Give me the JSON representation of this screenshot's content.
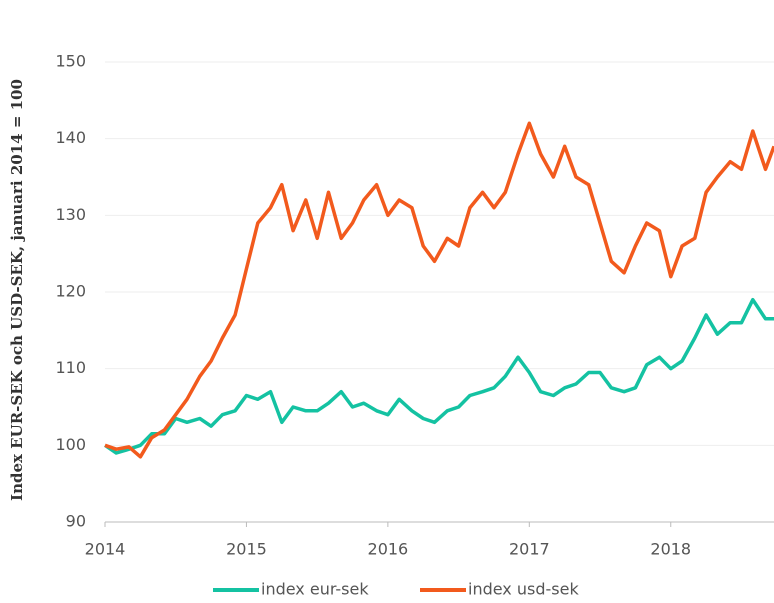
{
  "chart_data": {
    "type": "line",
    "y_label": "Index EUR-SEK och USD-SEK, januari 2014 = 100",
    "x": [
      2014,
      2014.08,
      2014.17,
      2014.25,
      2014.33,
      2014.42,
      2014.5,
      2014.58,
      2014.67,
      2014.75,
      2014.83,
      2014.92,
      2015,
      2015.08,
      2015.17,
      2015.25,
      2015.33,
      2015.42,
      2015.5,
      2015.58,
      2015.67,
      2015.75,
      2015.83,
      2015.92,
      2016,
      2016.08,
      2016.17,
      2016.25,
      2016.33,
      2016.42,
      2016.5,
      2016.58,
      2016.67,
      2016.75,
      2016.83,
      2016.92,
      2017,
      2017.08,
      2017.17,
      2017.25,
      2017.33,
      2017.42,
      2017.5,
      2017.58,
      2017.67,
      2017.75,
      2017.83,
      2017.92,
      2018,
      2018.08,
      2018.17,
      2018.25,
      2018.33,
      2018.42,
      2018.5,
      2018.58,
      2018.67,
      2018.73
    ],
    "series": [
      {
        "name": "index eur-sek",
        "color": "#14c2a2",
        "values": [
          100,
          99,
          99.5,
          100,
          101.5,
          101.5,
          103.5,
          103,
          103.5,
          102.5,
          104,
          104.5,
          106.5,
          106,
          107,
          103,
          105,
          104.5,
          104.5,
          105.5,
          107,
          105,
          105.5,
          104.5,
          104,
          106,
          104.5,
          103.5,
          103,
          104.5,
          105,
          106.5,
          107,
          107.5,
          109,
          111.5,
          109.5,
          107,
          106.5,
          107.5,
          108,
          109.5,
          109.5,
          107.5,
          107,
          107.5,
          110.5,
          111.5,
          110,
          111,
          114,
          117,
          114.5,
          116,
          116,
          119,
          116.5,
          116.5
        ]
      },
      {
        "name": "index usd-sek",
        "color": "#f25a1d",
        "values": [
          100,
          99.5,
          99.8,
          98.5,
          101,
          102,
          104,
          106,
          109,
          111,
          114,
          117,
          123,
          129,
          131,
          134,
          128,
          132,
          127,
          133,
          127,
          129,
          132,
          134,
          130,
          132,
          131,
          126,
          124,
          127,
          126,
          131,
          133,
          131,
          133,
          138,
          142,
          138,
          135,
          139,
          135,
          134,
          129,
          124,
          122.5,
          126,
          129,
          128,
          122,
          126,
          127,
          133,
          135,
          137,
          136,
          141,
          136,
          139
        ]
      }
    ],
    "xlim": [
      2014,
      2018.73
    ],
    "xticks": [
      2014,
      2015,
      2016,
      2017,
      2018
    ],
    "ylim": [
      90,
      150
    ],
    "yticks": [
      90,
      100,
      110,
      120,
      130,
      140,
      150
    ],
    "grid": true,
    "legend": "bottom"
  }
}
